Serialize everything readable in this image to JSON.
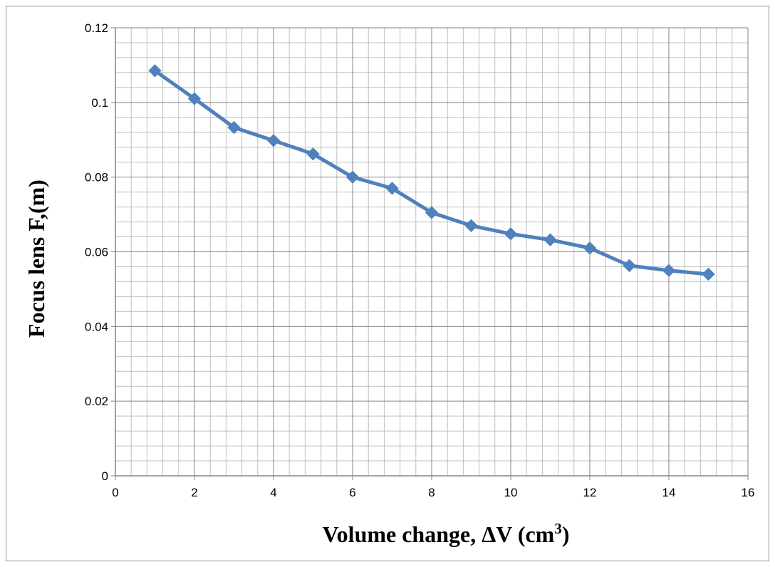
{
  "chart_data": {
    "type": "line",
    "title": "",
    "xlabel": "Volume change, ΔV (cm",
    "xlabel_superscript": "3",
    "xlabel_suffix": ")",
    "ylabel": "Focus lens F,(m)",
    "xlim": [
      0,
      16
    ],
    "ylim": [
      0,
      0.12
    ],
    "x_ticks": [
      "0",
      "2",
      "4",
      "6",
      "8",
      "10",
      "12",
      "14",
      "16"
    ],
    "y_ticks": [
      "0",
      "0.02",
      "0.04",
      "0.06",
      "0.08",
      "0.1",
      "0.12"
    ],
    "grid": true,
    "legend": "none",
    "marker": "diamond",
    "series_color": "#4f81bd",
    "series": [
      {
        "x": [
          1,
          2,
          3,
          4,
          5,
          6,
          7,
          8,
          9,
          10,
          11,
          12,
          13,
          14,
          15
        ],
        "values": [
          0.1085,
          0.101,
          0.0933,
          0.0898,
          0.0862,
          0.08,
          0.077,
          0.0705,
          0.067,
          0.0648,
          0.0632,
          0.061,
          0.0563,
          0.055,
          0.054
        ]
      }
    ]
  }
}
